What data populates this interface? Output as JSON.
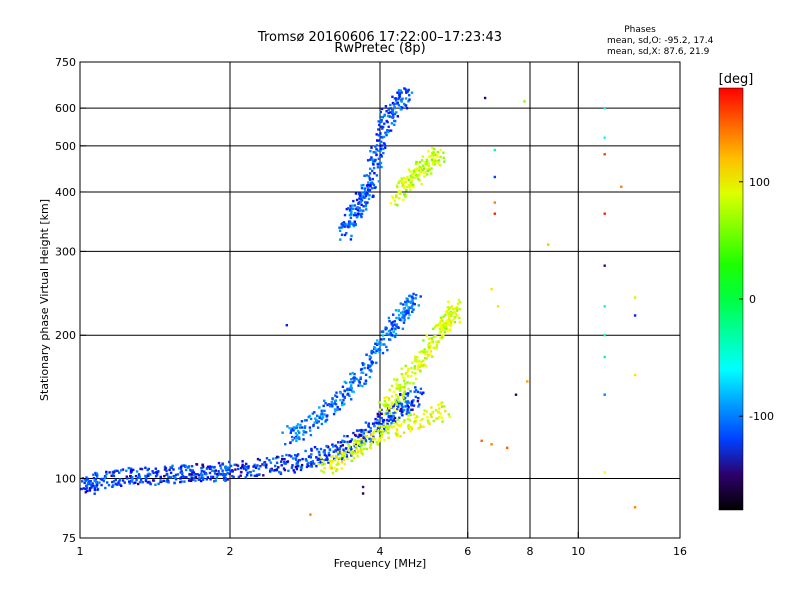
{
  "chart_data": {
    "type": "scatter",
    "title": "Tromsø 20160606 17:22:00–17:23:43",
    "subtitle": "RwPretec (8p)",
    "xlabel": "Frequency [MHz]",
    "ylabel": "Stationary phase Virtual Height [km]",
    "x_scale": "log2",
    "y_scale": "log",
    "xlim": [
      1,
      16
    ],
    "ylim": [
      75,
      750
    ],
    "x_ticks": [
      1,
      2,
      4,
      6,
      8,
      10,
      16
    ],
    "x_tick_labels": [
      "1",
      "2",
      "4",
      "6",
      "8",
      "10",
      "16"
    ],
    "y_ticks": [
      75,
      100,
      200,
      300,
      400,
      500,
      600,
      750
    ],
    "y_tick_labels": [
      "75",
      "100",
      "200",
      "300",
      "400",
      "500",
      "600",
      "750"
    ],
    "grid_x": [
      2,
      4,
      6,
      8,
      10
    ],
    "grid_y": [
      100,
      200,
      300,
      400,
      500,
      600
    ],
    "grid": true,
    "phase_info": {
      "heading": "Phases",
      "line_o": "mean, sd,O: -95.2, 17.4",
      "line_x": "mean, sd,X:  87.6, 21.9"
    },
    "colorbar": {
      "title": "[deg]",
      "range": [
        -180,
        180
      ],
      "ticks": [
        100,
        0,
        -100
      ],
      "tick_labels": [
        "100",
        "0",
        "-100"
      ],
      "colormap": "rainbow"
    },
    "traces": [
      {
        "name_hint": "low O trace",
        "phase": -120,
        "points": [
          [
            1.0,
            97
          ],
          [
            1.05,
            97
          ],
          [
            1.1,
            99
          ],
          [
            1.2,
            100
          ],
          [
            1.3,
            101
          ],
          [
            1.4,
            101
          ],
          [
            1.5,
            102
          ],
          [
            1.6,
            102
          ],
          [
            1.7,
            102
          ],
          [
            1.8,
            103
          ],
          [
            1.9,
            103
          ],
          [
            2.0,
            104
          ],
          [
            2.2,
            105
          ],
          [
            2.4,
            106
          ],
          [
            2.6,
            107
          ],
          [
            2.8,
            109
          ],
          [
            3.0,
            111
          ],
          [
            3.2,
            113
          ],
          [
            3.4,
            116
          ],
          [
            3.6,
            120
          ],
          [
            3.8,
            125
          ],
          [
            4.0,
            131
          ],
          [
            4.2,
            136
          ],
          [
            4.4,
            141
          ],
          [
            4.6,
            146
          ],
          [
            4.8,
            150
          ]
        ]
      },
      {
        "name_hint": "F1 O trace",
        "phase": -105,
        "points": [
          [
            2.6,
            122
          ],
          [
            2.8,
            127
          ],
          [
            3.0,
            135
          ],
          [
            3.2,
            143
          ],
          [
            3.4,
            152
          ],
          [
            3.6,
            162
          ],
          [
            3.8,
            175
          ],
          [
            4.0,
            190
          ],
          [
            4.2,
            205
          ],
          [
            4.4,
            218
          ],
          [
            4.6,
            230
          ],
          [
            4.7,
            240
          ]
        ]
      },
      {
        "name_hint": "upper O trace",
        "phase": -115,
        "points": [
          [
            3.4,
            330
          ],
          [
            3.5,
            350
          ],
          [
            3.6,
            370
          ],
          [
            3.7,
            390
          ],
          [
            3.8,
            410
          ],
          [
            3.9,
            450
          ],
          [
            4.0,
            500
          ],
          [
            4.1,
            550
          ],
          [
            4.2,
            590
          ],
          [
            4.4,
            620
          ],
          [
            4.5,
            640
          ]
        ]
      },
      {
        "name_hint": "F1 X trace",
        "phase": 85,
        "points": [
          [
            4.1,
            140
          ],
          [
            4.3,
            150
          ],
          [
            4.5,
            160
          ],
          [
            4.8,
            175
          ],
          [
            5.0,
            185
          ],
          [
            5.2,
            200
          ],
          [
            5.4,
            210
          ],
          [
            5.6,
            220
          ],
          [
            5.7,
            230
          ]
        ]
      },
      {
        "name_hint": "upper X trace",
        "phase": 80,
        "points": [
          [
            4.3,
            390
          ],
          [
            4.5,
            410
          ],
          [
            4.7,
            430
          ],
          [
            4.9,
            450
          ],
          [
            5.1,
            470
          ],
          [
            5.3,
            480
          ]
        ]
      },
      {
        "name_hint": "low X trace",
        "phase": 90,
        "points": [
          [
            3.1,
            105
          ],
          [
            3.3,
            110
          ],
          [
            3.6,
            115
          ],
          [
            3.8,
            120
          ],
          [
            4.1,
            125
          ],
          [
            4.5,
            130
          ],
          [
            5.0,
            135
          ],
          [
            5.5,
            140
          ]
        ]
      }
    ],
    "scattered_points": [
      {
        "x": 6.5,
        "y": 630,
        "phase": -150
      },
      {
        "x": 7.8,
        "y": 620,
        "phase": 60
      },
      {
        "x": 6.8,
        "y": 490,
        "phase": -30
      },
      {
        "x": 6.8,
        "y": 430,
        "phase": -120
      },
      {
        "x": 6.8,
        "y": 380,
        "phase": 140
      },
      {
        "x": 6.8,
        "y": 360,
        "phase": 170
      },
      {
        "x": 8.7,
        "y": 310,
        "phase": 120
      },
      {
        "x": 11.3,
        "y": 600,
        "phase": -50
      },
      {
        "x": 11.3,
        "y": 520,
        "phase": -60
      },
      {
        "x": 11.3,
        "y": 480,
        "phase": 160
      },
      {
        "x": 11.3,
        "y": 360,
        "phase": 170
      },
      {
        "x": 11.3,
        "y": 280,
        "phase": -140
      },
      {
        "x": 11.3,
        "y": 230,
        "phase": -50
      },
      {
        "x": 11.3,
        "y": 200,
        "phase": -40
      },
      {
        "x": 11.3,
        "y": 180,
        "phase": -30
      },
      {
        "x": 11.3,
        "y": 150,
        "phase": -100
      },
      {
        "x": 11.3,
        "y": 103,
        "phase": 100
      },
      {
        "x": 12.2,
        "y": 410,
        "phase": 140
      },
      {
        "x": 13.0,
        "y": 240,
        "phase": 80
      },
      {
        "x": 13.0,
        "y": 220,
        "phase": -130
      },
      {
        "x": 13.0,
        "y": 165,
        "phase": 110
      },
      {
        "x": 13.0,
        "y": 87,
        "phase": 140
      },
      {
        "x": 2.9,
        "y": 84,
        "phase": 140
      },
      {
        "x": 3.2,
        "y": 105,
        "phase": 120
      },
      {
        "x": 3.2,
        "y": 108,
        "phase": 100
      },
      {
        "x": 3.7,
        "y": 93,
        "phase": -160
      },
      {
        "x": 3.7,
        "y": 96,
        "phase": -140
      },
      {
        "x": 6.4,
        "y": 120,
        "phase": 150
      },
      {
        "x": 6.7,
        "y": 118,
        "phase": 140
      },
      {
        "x": 7.2,
        "y": 116,
        "phase": 150
      },
      {
        "x": 7.5,
        "y": 150,
        "phase": -150
      },
      {
        "x": 7.9,
        "y": 160,
        "phase": 130
      },
      {
        "x": 2.6,
        "y": 210,
        "phase": -130
      },
      {
        "x": 6.7,
        "y": 250,
        "phase": 110
      },
      {
        "x": 6.9,
        "y": 230,
        "phase": 110
      }
    ]
  }
}
